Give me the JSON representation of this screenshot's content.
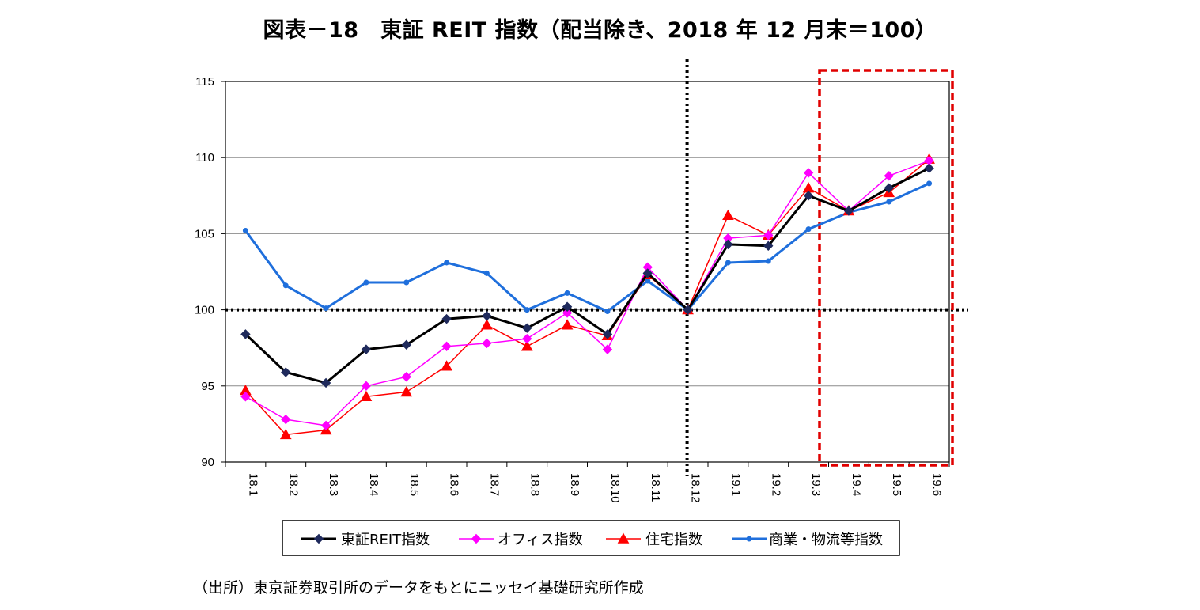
{
  "title": "図表－18　東証 REIT 指数（配当除き、2018 年 12 月末＝100）",
  "source": "（出所）東京証券取引所のデータをもとにニッセイ基礎研究所作成",
  "chart_data": {
    "type": "line",
    "categories": [
      "18.1",
      "18.2",
      "18.3",
      "18.4",
      "18.5",
      "18.6",
      "18.7",
      "18.8",
      "18.9",
      "18.10",
      "18.11",
      "18.12",
      "19.1",
      "19.2",
      "19.3",
      "19.4",
      "19.5",
      "19.6"
    ],
    "ylim": [
      90,
      115
    ],
    "yticks": [
      90,
      95,
      100,
      105,
      110,
      115
    ],
    "grid": true,
    "legend_position": "bottom",
    "reference_line_y": 100,
    "reference_line_category": "18.12",
    "highlight_range": [
      "19.4",
      "19.6"
    ],
    "series": [
      {
        "name": "東証REIT指数",
        "color": "#000000",
        "marker_color": "#1f2a5c",
        "marker": "diamond",
        "values": [
          98.4,
          95.9,
          95.2,
          97.4,
          97.7,
          99.4,
          99.6,
          98.8,
          100.2,
          98.4,
          102.4,
          100.0,
          104.3,
          104.2,
          107.5,
          106.5,
          108.0,
          109.3
        ]
      },
      {
        "name": "オフィス指数",
        "color": "#ff00ff",
        "marker_color": "#ff00ff",
        "marker": "diamond",
        "values": [
          94.3,
          92.8,
          92.4,
          95.0,
          95.6,
          97.6,
          97.8,
          98.1,
          99.8,
          97.4,
          102.8,
          100.0,
          104.7,
          104.9,
          109.0,
          106.5,
          108.8,
          109.8
        ]
      },
      {
        "name": "住宅指数",
        "color": "#ff0000",
        "marker_color": "#ff0000",
        "marker": "triangle",
        "values": [
          94.7,
          91.8,
          92.1,
          94.3,
          94.6,
          96.3,
          99.0,
          97.6,
          99.0,
          98.3,
          102.3,
          100.0,
          106.2,
          104.9,
          108.0,
          106.5,
          107.7,
          109.9
        ]
      },
      {
        "name": "商業・物流等指数",
        "color": "#1f6fdc",
        "marker_color": "#1f6fdc",
        "marker": "circle",
        "values": [
          105.2,
          101.6,
          100.1,
          101.8,
          101.8,
          103.1,
          102.4,
          100.0,
          101.1,
          99.9,
          101.9,
          100.0,
          103.1,
          103.2,
          105.3,
          106.4,
          107.1,
          108.3
        ]
      }
    ]
  }
}
